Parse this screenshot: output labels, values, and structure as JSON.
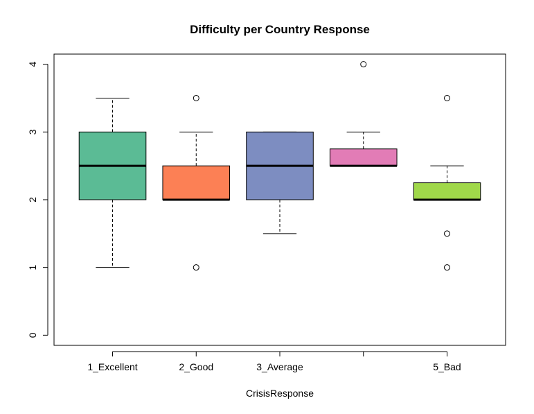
{
  "chart_data": {
    "type": "boxplot",
    "title": "Difficulty per Country Response",
    "xlabel": "CrisisResponse",
    "ylabel": "",
    "ylim": [
      -0.15,
      4.15
    ],
    "yticks": [
      "0",
      "1",
      "2",
      "3",
      "4"
    ],
    "grid": false,
    "categories": [
      "1_Excellent",
      "2_Good",
      "3_Average",
      "",
      "5_Bad"
    ],
    "boxes": [
      {
        "category": "1_Excellent",
        "color": "#5BBB95",
        "whisker_low": 1.0,
        "q1": 2.0,
        "median": 2.5,
        "q3": 3.0,
        "whisker_high": 3.5,
        "outliers": []
      },
      {
        "category": "2_Good",
        "color": "#FC8055",
        "whisker_low": 2.0,
        "q1": 2.0,
        "median": 2.0,
        "q3": 2.5,
        "whisker_high": 3.0,
        "outliers": [
          1.0,
          3.5
        ]
      },
      {
        "category": "3_Average",
        "color": "#7D8DC1",
        "whisker_low": 1.5,
        "q1": 2.0,
        "median": 2.5,
        "q3": 3.0,
        "whisker_high": 3.0,
        "outliers": []
      },
      {
        "category": "",
        "color": "#E27CB6",
        "whisker_low": 2.5,
        "q1": 2.5,
        "median": 2.5,
        "q3": 2.75,
        "whisker_high": 3.0,
        "outliers": [
          4.0
        ]
      },
      {
        "category": "5_Bad",
        "color": "#A0D84A",
        "whisker_low": 2.0,
        "q1": 2.0,
        "median": 2.0,
        "q3": 2.25,
        "whisker_high": 2.5,
        "outliers": [
          1.0,
          1.5,
          3.5
        ]
      }
    ]
  }
}
